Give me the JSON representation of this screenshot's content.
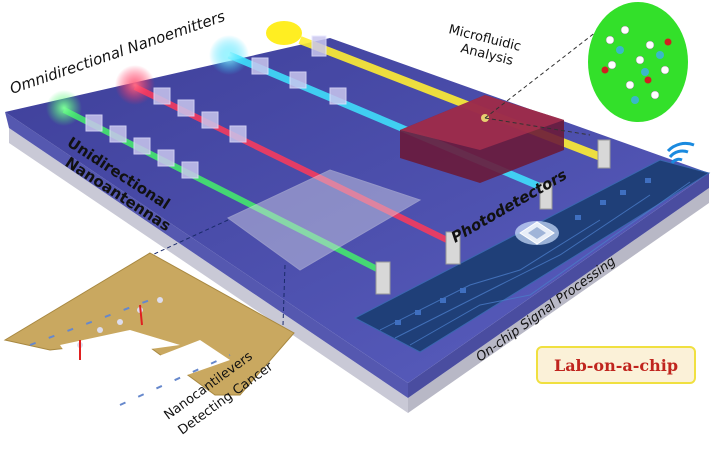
{
  "labels": {
    "emitters": "Omnidirectional Nanoemitters",
    "microfluidic_line1": "Microfluidic",
    "microfluidic_line2": "Analysis",
    "antennas_line1": "Unidirectional",
    "antennas_line2": "Nanoantennas",
    "photodetectors": "Photodetectors",
    "signal_processing": "On-chip Signal Processing",
    "cantilevers_line1": "Nanocantilevers",
    "cantilevers_line2": "Detecting Cancer",
    "badge": "Lab-on-a-chip"
  },
  "colors": {
    "chip_top": "#4a4fa8",
    "chip_side": "#c9c9d6",
    "pcb": "#1f3f78",
    "beam_green": "#44f06a",
    "beam_red": "#ff3a5a",
    "beam_cyan": "#3fe6ff",
    "beam_yellow": "#ffee33",
    "molecule_bg": "#33e02a",
    "gold": "#c9a860",
    "badge_text": "#c0251e",
    "badge_bg": "#fbf1d8",
    "badge_border": "#f0e040"
  }
}
